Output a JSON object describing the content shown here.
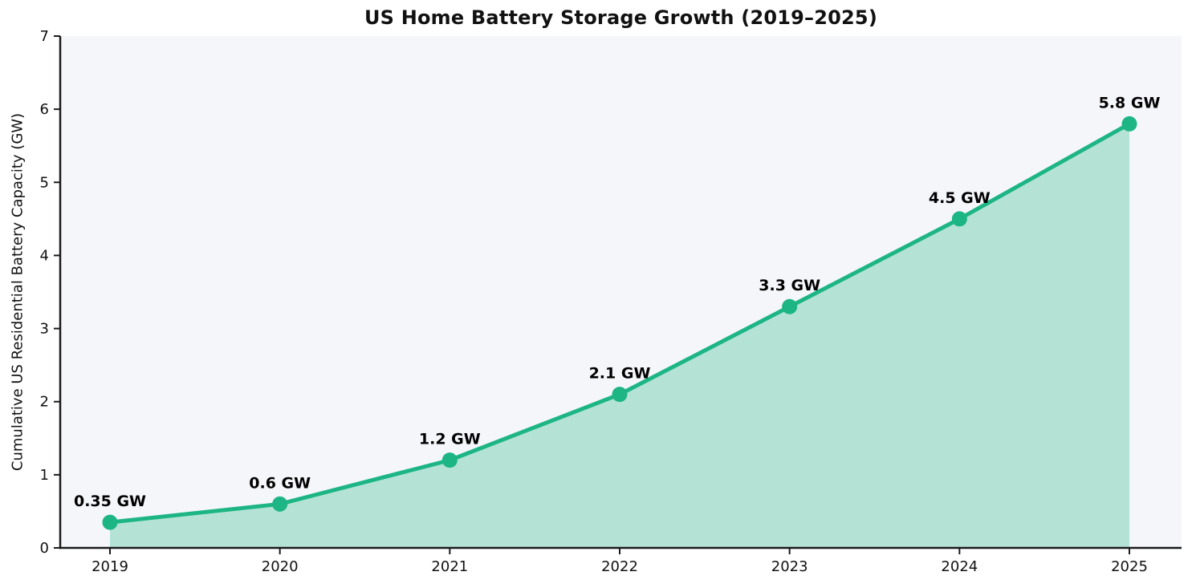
{
  "figure": {
    "title": "US Home Battery Storage Growth (2019–2025)",
    "y_axis_label": "Cumulative US Residential Battery Capacity (GW)"
  },
  "chart_data": {
    "type": "area",
    "title": "US Home Battery Storage Growth (2019–2025)",
    "xlabel": "",
    "ylabel": "Cumulative US Residential Battery Capacity (GW)",
    "categories": [
      "2019",
      "2020",
      "2021",
      "2022",
      "2023",
      "2024",
      "2025"
    ],
    "values": [
      0.35,
      0.6,
      1.2,
      2.1,
      3.3,
      4.5,
      5.8
    ],
    "point_labels": [
      "0.35 GW",
      "0.6 GW",
      "1.2 GW",
      "2.1 GW",
      "3.3 GW",
      "4.5 GW",
      "5.8 GW"
    ],
    "ylim": [
      0,
      7
    ],
    "yticks": [
      "0",
      "1",
      "2",
      "3",
      "4",
      "5",
      "6",
      "7"
    ],
    "grid": false,
    "legend_position": "none",
    "colors": {
      "line": "#1db584",
      "marker": "#1db584",
      "fill": "rgba(30, 181, 132, 0.30)",
      "plot_background": "#f5f6fa",
      "figure_background": "#ffffff",
      "axis": "#1a1a1a",
      "text": "#111111"
    }
  }
}
